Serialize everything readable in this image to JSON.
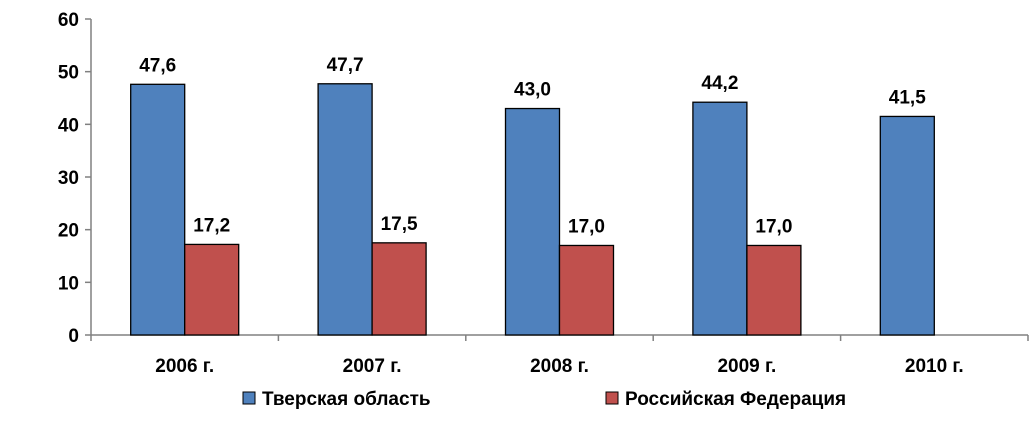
{
  "chart_data": {
    "type": "bar",
    "categories": [
      "2006 г.",
      "2007 г.",
      "2008 г.",
      "2009 г.",
      "2010 г."
    ],
    "series": [
      {
        "name": "Тверская область",
        "values": [
          47.6,
          47.7,
          43.0,
          44.2,
          41.5
        ],
        "labels": [
          "47,6",
          "47,7",
          "43,0",
          "44,2",
          "41,5"
        ],
        "color": "#4F81BD"
      },
      {
        "name": "Российская Федерация",
        "values": [
          17.2,
          17.5,
          17.0,
          17.0,
          null
        ],
        "labels": [
          "17,2",
          "17,5",
          "17,0",
          "17,0",
          null
        ],
        "color": "#C0504D"
      }
    ],
    "yticks": [
      "0",
      "10",
      "20",
      "30",
      "40",
      "50",
      "60"
    ],
    "ylim": [
      0,
      60
    ],
    "grid": false,
    "legend_position": "bottom"
  }
}
